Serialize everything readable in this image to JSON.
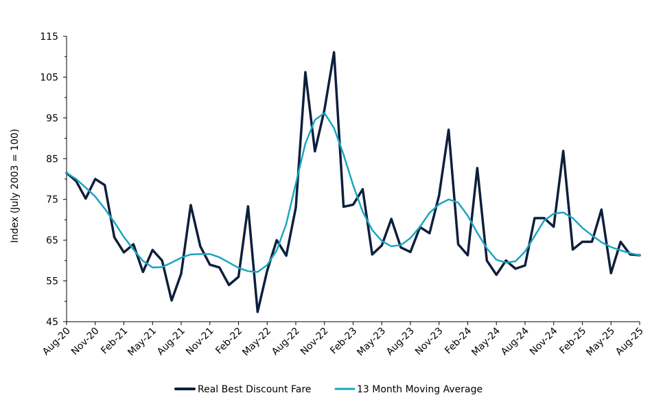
{
  "chart_data": {
    "type": "line",
    "ylabel": "Index (July 2003 = 100)",
    "xlabel": "",
    "ylim": [
      45,
      115
    ],
    "y_ticks": [
      "45",
      "55",
      "65",
      "75",
      "85",
      "95",
      "105",
      "115"
    ],
    "x": [
      "Aug-20",
      "Sep-20",
      "Oct-20",
      "Nov-20",
      "Dec-20",
      "Jan-21",
      "Feb-21",
      "Mar-21",
      "Apr-21",
      "May-21",
      "Jun-21",
      "Jul-21",
      "Aug-21",
      "Sep-21",
      "Oct-21",
      "Nov-21",
      "Dec-21",
      "Jan-22",
      "Feb-22",
      "Mar-22",
      "Apr-22",
      "May-22",
      "Jun-22",
      "Jul-22",
      "Aug-22",
      "Sep-22",
      "Oct-22",
      "Nov-22",
      "Dec-22",
      "Jan-23",
      "Feb-23",
      "Mar-23",
      "Apr-23",
      "May-23",
      "Jun-23",
      "Jul-23",
      "Aug-23",
      "Sep-23",
      "Oct-23",
      "Nov-23",
      "Dec-23",
      "Jan-24",
      "Feb-24",
      "Mar-24",
      "Apr-24",
      "May-24",
      "Jun-24",
      "Jul-24",
      "Aug-24",
      "Sep-24",
      "Oct-24",
      "Nov-24",
      "Dec-24",
      "Jan-25",
      "Feb-25",
      "Mar-25",
      "Apr-25",
      "May-25",
      "Jun-25",
      "Jul-25",
      "Aug-25"
    ],
    "x_tick_labels": [
      "Aug-20",
      "Nov-20",
      "Feb-21",
      "May-21",
      "Aug-21",
      "Nov-21",
      "Feb-22",
      "May-22",
      "Aug-22",
      "Nov-22",
      "Feb-23",
      "May-23",
      "Aug-23",
      "Nov-23",
      "Feb-24",
      "May-24",
      "Aug-24",
      "Nov-24",
      "Feb-25",
      "May-25",
      "Aug-25"
    ],
    "legend_position": "bottom",
    "grid": false,
    "series": [
      {
        "name": "Real Best Discount Fare",
        "color": "#0d1f3c",
        "values": [
          81.5,
          79.5,
          75.2,
          80.0,
          78.5,
          65.7,
          62.0,
          64.0,
          57.2,
          62.6,
          60.0,
          50.2,
          56.8,
          73.6,
          63.5,
          59.0,
          58.3,
          54.0,
          56.0,
          73.3,
          47.4,
          57.5,
          65.0,
          61.2,
          73.0,
          106.2,
          86.8,
          97.0,
          111.1,
          73.2,
          73.7,
          77.5,
          61.5,
          63.7,
          70.2,
          63.2,
          62.1,
          68.2,
          66.7,
          76.0,
          92.1,
          64.0,
          61.3,
          82.7,
          60.0,
          56.5,
          60.0,
          58.0,
          58.8,
          70.4,
          70.4,
          68.3,
          86.9,
          62.7,
          64.6,
          64.6,
          72.5,
          56.9,
          64.6,
          61.5,
          61.3
        ]
      },
      {
        "name": "13 Month Moving Average",
        "color": "#19a5c1",
        "values": [
          81.5,
          80.0,
          77.9,
          75.7,
          72.7,
          69.4,
          65.8,
          62.7,
          59.9,
          58.3,
          58.4,
          59.5,
          60.7,
          61.5,
          61.6,
          61.6,
          60.8,
          59.5,
          58.2,
          57.4,
          57.2,
          58.9,
          62.5,
          69.0,
          78.9,
          88.7,
          94.5,
          96.2,
          92.5,
          86.0,
          78.5,
          72.0,
          67.5,
          64.8,
          63.5,
          63.8,
          65.5,
          68.3,
          71.7,
          73.8,
          75.0,
          74.2,
          71.0,
          66.8,
          63.0,
          60.2,
          59.5,
          59.8,
          62.2,
          66.0,
          69.8,
          71.5,
          71.8,
          70.4,
          68.0,
          66.2,
          64.5,
          63.3,
          62.5,
          61.8,
          61.3
        ]
      }
    ]
  }
}
